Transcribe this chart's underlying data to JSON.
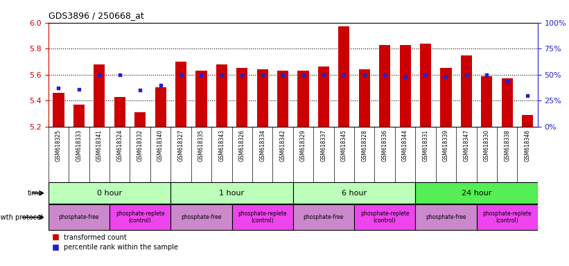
{
  "title": "GDS3896 / 250668_at",
  "samples": [
    "GSM618325",
    "GSM618333",
    "GSM618341",
    "GSM618324",
    "GSM618332",
    "GSM618340",
    "GSM618327",
    "GSM618335",
    "GSM618343",
    "GSM618326",
    "GSM618334",
    "GSM618342",
    "GSM618329",
    "GSM618337",
    "GSM618345",
    "GSM618328",
    "GSM618336",
    "GSM618344",
    "GSM618331",
    "GSM618339",
    "GSM618347",
    "GSM618330",
    "GSM618338",
    "GSM618346"
  ],
  "transformed_counts": [
    5.46,
    5.37,
    5.68,
    5.43,
    5.31,
    5.5,
    5.7,
    5.63,
    5.68,
    5.65,
    5.64,
    5.63,
    5.63,
    5.66,
    5.97,
    5.64,
    5.83,
    5.83,
    5.84,
    5.65,
    5.75,
    5.59,
    5.57,
    5.29
  ],
  "percentile_ranks": [
    37,
    36,
    50,
    50,
    35,
    40,
    50,
    50,
    50,
    50,
    50,
    50,
    50,
    50,
    50,
    50,
    50,
    48,
    50,
    48,
    50,
    50,
    44,
    30
  ],
  "ymin": 5.2,
  "ymax": 6.0,
  "yticks": [
    5.2,
    5.4,
    5.6,
    5.8,
    6.0
  ],
  "right_yticks": [
    0,
    25,
    50,
    75,
    100
  ],
  "bar_color": "#CC0000",
  "dot_color": "#2222CC",
  "bar_width": 0.55,
  "time_groups": [
    {
      "label": "0 hour",
      "start": 0,
      "end": 6,
      "color": "#BBFFBB"
    },
    {
      "label": "1 hour",
      "start": 6,
      "end": 12,
      "color": "#BBFFBB"
    },
    {
      "label": "6 hour",
      "start": 12,
      "end": 18,
      "color": "#BBFFBB"
    },
    {
      "label": "24 hour",
      "start": 18,
      "end": 24,
      "color": "#55EE55"
    }
  ],
  "protocol_groups": [
    {
      "label": "phosphate-free",
      "start": 0,
      "end": 3,
      "color": "#CC88CC"
    },
    {
      "label": "phosphate-replete\n(control)",
      "start": 3,
      "end": 6,
      "color": "#EE44EE"
    },
    {
      "label": "phosphate-free",
      "start": 6,
      "end": 9,
      "color": "#CC88CC"
    },
    {
      "label": "phosphate-replete\n(control)",
      "start": 9,
      "end": 12,
      "color": "#EE44EE"
    },
    {
      "label": "phosphate-free",
      "start": 12,
      "end": 15,
      "color": "#CC88CC"
    },
    {
      "label": "phosphate-replete\n(control)",
      "start": 15,
      "end": 18,
      "color": "#EE44EE"
    },
    {
      "label": "phosphate-free",
      "start": 18,
      "end": 21,
      "color": "#CC88CC"
    },
    {
      "label": "phosphate-replete\n(control)",
      "start": 21,
      "end": 24,
      "color": "#EE44EE"
    }
  ],
  "legend_items": [
    {
      "label": "transformed count",
      "color": "#CC0000"
    },
    {
      "label": "percentile rank within the sample",
      "color": "#2222CC"
    }
  ],
  "background_color": "#FFFFFF",
  "tick_color_left": "#CC0000",
  "tick_color_right": "#2222CC",
  "label_area_color": "#DDDDDD",
  "n_samples": 24
}
